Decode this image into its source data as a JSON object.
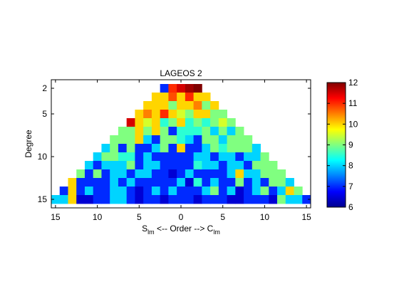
{
  "chart_data": {
    "type": "heatmap",
    "title": "LAGEOS 2",
    "ylabel": "Degree",
    "xlabel": {
      "left": "S",
      "left_sub": "lm",
      "middle": " <-- Order --> ",
      "right": "C",
      "right_sub": "lm"
    },
    "x_ticks": [
      {
        "value": -15,
        "label": "15"
      },
      {
        "value": -10,
        "label": "10"
      },
      {
        "value": -5,
        "label": "5"
      },
      {
        "value": 0,
        "label": "0"
      },
      {
        "value": 5,
        "label": "5"
      },
      {
        "value": 10,
        "label": "10"
      },
      {
        "value": 15,
        "label": "15"
      }
    ],
    "y_ticks": [
      {
        "value": 2,
        "label": "2"
      },
      {
        "value": 5,
        "label": "5"
      },
      {
        "value": 10,
        "label": "10"
      },
      {
        "value": 15,
        "label": "15"
      }
    ],
    "xlim": [
      -15,
      16
    ],
    "ylim": [
      1,
      16
    ],
    "colorbar": {
      "colormap": "jet",
      "range": [
        6,
        12
      ],
      "ticks": [
        "6",
        "7",
        "8",
        "9",
        "10",
        "11",
        "12"
      ]
    },
    "rows": [
      {
        "degree": 2,
        "values": [
          7,
          11,
          11.5,
          11.8,
          12
        ]
      },
      {
        "degree": 3,
        "values": [
          10,
          10,
          10.8,
          10,
          11,
          10,
          10
        ]
      },
      {
        "degree": 4,
        "values": [
          10,
          10,
          10,
          9,
          10,
          10,
          10.5,
          9,
          10
        ]
      },
      {
        "degree": 5,
        "values": [
          10,
          10.5,
          10,
          11,
          10,
          9.5,
          9,
          10,
          10,
          9,
          9
        ]
      },
      {
        "degree": 6,
        "values": [
          11.5,
          10,
          9.5,
          10,
          8.5,
          9,
          10,
          8.5,
          9,
          8.5,
          9,
          9.5,
          9
        ]
      },
      {
        "degree": 7,
        "values": [
          9,
          9,
          10,
          9,
          10,
          9,
          7,
          8.5,
          8.5,
          8.5,
          9,
          8,
          9,
          8,
          9
        ]
      },
      {
        "degree": 8,
        "values": [
          9,
          9,
          9,
          10,
          8,
          7,
          9,
          9,
          8.5,
          8,
          7,
          9,
          9,
          8,
          9,
          9,
          9
        ]
      },
      {
        "degree": 9,
        "values": [
          8,
          9,
          7,
          9,
          7,
          7,
          8,
          9,
          7,
          10,
          7,
          7,
          8,
          9,
          8.5,
          9,
          9,
          9,
          8
        ]
      },
      {
        "degree": 10,
        "values": [
          8,
          9,
          9,
          8.5,
          8.5,
          7,
          8,
          7,
          7,
          7,
          7,
          7,
          8,
          8,
          7,
          8,
          8,
          7,
          8,
          8,
          9
        ]
      },
      {
        "degree": 11,
        "values": [
          8,
          7,
          8,
          8,
          8,
          9,
          7,
          8,
          8,
          7,
          7,
          7,
          7,
          8.5,
          8,
          8,
          7,
          8,
          8,
          7,
          9,
          9,
          9
        ]
      },
      {
        "degree": 12,
        "values": [
          9,
          7,
          9,
          7,
          8,
          8,
          7,
          8,
          8,
          7,
          7,
          6.5,
          7,
          8,
          7,
          7,
          7,
          7,
          8,
          10,
          8,
          8,
          9,
          9,
          9
        ]
      },
      {
        "degree": 13,
        "values": [
          10,
          7,
          7,
          7,
          7,
          8,
          7,
          8,
          7,
          7,
          7,
          7,
          7,
          8,
          6.5,
          8.5,
          7,
          8,
          7,
          7,
          9,
          7,
          8,
          7,
          9,
          9,
          8
        ]
      },
      {
        "degree": 14,
        "values": [
          7,
          10,
          7,
          8,
          7,
          7,
          8,
          8,
          7,
          6.5,
          7,
          8,
          7,
          8,
          7,
          7,
          7,
          8,
          9,
          7,
          8,
          6.5,
          7,
          8,
          9,
          7,
          8,
          10,
          9
        ]
      },
      {
        "degree": 15,
        "values": [
          8,
          8,
          10,
          6.5,
          6.5,
          7,
          7,
          8,
          8,
          7,
          6.5,
          7,
          7,
          6.5,
          7,
          7,
          7,
          6.5,
          7,
          7,
          7,
          6.5,
          6.5,
          7,
          7,
          7,
          6.5,
          9,
          8,
          8,
          7
        ]
      }
    ]
  }
}
